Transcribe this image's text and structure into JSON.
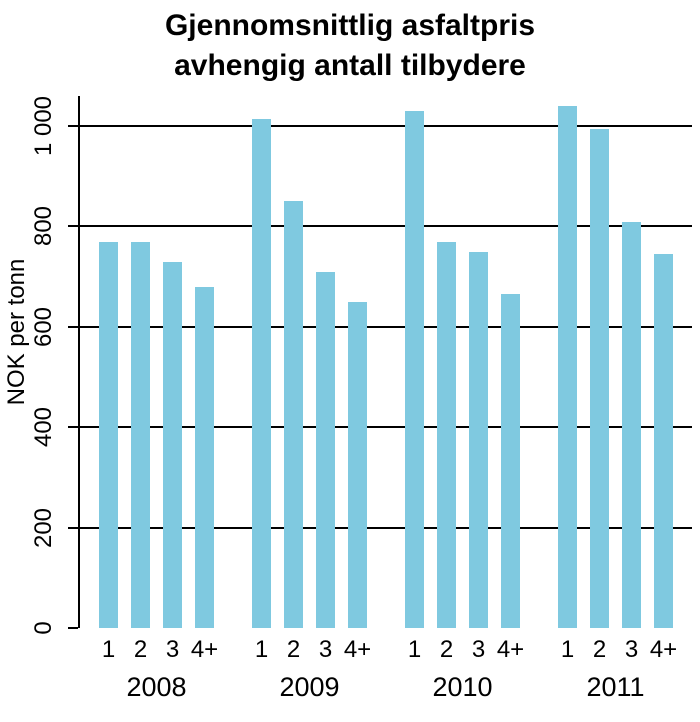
{
  "title": {
    "line1": "Gjennomsnittlig asfaltpris",
    "line2": "avhengig antall tilbydere"
  },
  "chart_data": {
    "type": "bar",
    "title": "Gjennomsnittlig asfaltpris avhengig antall tilbydere",
    "xlabel": "",
    "ylabel": "NOK per tonn",
    "ylim": [
      0,
      1060
    ],
    "grid": "horizontal",
    "legend": "none",
    "bar_color": "#7fc9e0",
    "yticks": [
      {
        "value": 0,
        "label": "0"
      },
      {
        "value": 200,
        "label": "200"
      },
      {
        "value": 400,
        "label": "400"
      },
      {
        "value": 600,
        "label": "600"
      },
      {
        "value": 800,
        "label": "800"
      },
      {
        "value": 1000,
        "label": "1 000"
      }
    ],
    "subcategories": [
      "1",
      "2",
      "3",
      "4+"
    ],
    "groups": [
      {
        "year": "2008",
        "values": [
          770,
          770,
          730,
          680
        ]
      },
      {
        "year": "2009",
        "values": [
          1015,
          850,
          710,
          650
        ]
      },
      {
        "year": "2010",
        "values": [
          1030,
          770,
          750,
          665
        ]
      },
      {
        "year": "2011",
        "values": [
          1040,
          995,
          810,
          745
        ]
      }
    ]
  }
}
